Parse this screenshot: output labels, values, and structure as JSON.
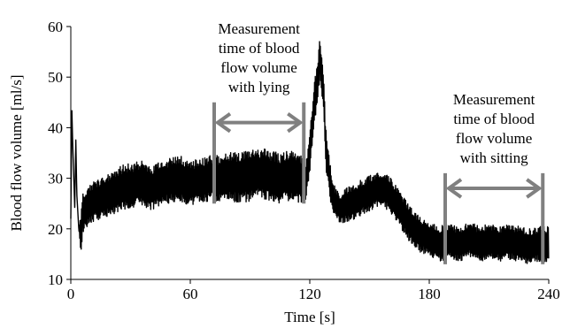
{
  "chart_data": {
    "type": "line",
    "xlabel": "Time [s]",
    "ylabel": "Blood flow volume [ml/s]",
    "xlim": [
      0,
      240
    ],
    "ylim": [
      10,
      60
    ],
    "xticks": [
      0,
      60,
      120,
      180,
      240
    ],
    "yticks": [
      10,
      20,
      30,
      40,
      50,
      60
    ],
    "x_tick_labels": [
      "0",
      "60",
      "120",
      "180",
      "240"
    ],
    "y_tick_labels": [
      "10",
      "20",
      "30",
      "40",
      "50",
      "60"
    ],
    "grid": false,
    "legend": "none",
    "series": [
      {
        "color": "#000000",
        "x": [
          0,
          0.5,
          1,
          1.5,
          2,
          2.5,
          3,
          4,
          5,
          6,
          8,
          10,
          15,
          20,
          25,
          30,
          35,
          40,
          45,
          50,
          55,
          60,
          65,
          70,
          75,
          80,
          85,
          90,
          95,
          100,
          105,
          110,
          115,
          118,
          120,
          122,
          124,
          125,
          126,
          127,
          128,
          130,
          131,
          133,
          135,
          140,
          145,
          150,
          155,
          160,
          165,
          170,
          175,
          180,
          185,
          190,
          195,
          200,
          205,
          210,
          215,
          220,
          225,
          230,
          235,
          240
        ],
        "y": [
          22,
          44,
          36,
          30,
          24,
          38,
          27,
          20,
          19,
          23,
          24,
          25,
          26,
          27,
          28,
          28.5,
          29,
          28,
          29,
          29.5,
          30,
          29,
          29.5,
          30,
          30,
          30.5,
          30,
          30.5,
          31,
          30.5,
          30,
          30.5,
          30,
          29,
          35,
          44,
          49,
          54,
          51,
          46,
          36,
          30,
          27,
          25,
          24,
          25,
          26,
          27,
          28,
          27,
          24,
          21,
          19,
          18,
          17,
          17.5,
          17,
          18,
          17,
          17.5,
          17,
          17.5,
          17,
          16.5,
          17,
          17
        ],
        "noise": [
          0,
          0,
          0,
          0,
          0,
          0,
          0,
          0,
          4,
          4,
          4,
          4,
          4,
          4.5,
          4.5,
          4.5,
          4.5,
          4.5,
          4.5,
          4.5,
          4.5,
          4.5,
          4.5,
          4.5,
          4.5,
          5,
          5,
          5,
          5,
          5,
          5,
          5,
          5,
          4,
          4,
          4,
          5,
          4,
          4,
          4,
          4,
          3.5,
          3.5,
          3,
          3,
          3.5,
          3.5,
          3.5,
          3.5,
          3.5,
          3.5,
          3.5,
          3.5,
          3.5,
          3.5,
          3.5,
          3.5,
          3.5,
          3.5,
          3.5,
          3.5,
          3.5,
          3.5,
          3.5,
          3.5,
          3.5
        ]
      }
    ],
    "annotations": [
      {
        "lines": [
          "Measurement",
          "time of blood",
          "flow volume",
          "with lying"
        ],
        "x_start": 72,
        "x_end": 117,
        "y_bottom": 25,
        "y_top": 45,
        "arrow_y": 41,
        "color": "#808080"
      },
      {
        "lines": [
          "Measurement",
          "time of blood",
          "flow volume",
          "with sitting"
        ],
        "x_start": 188,
        "x_end": 237,
        "y_bottom": 13,
        "y_top": 31,
        "arrow_y": 28,
        "color": "#808080"
      }
    ]
  }
}
